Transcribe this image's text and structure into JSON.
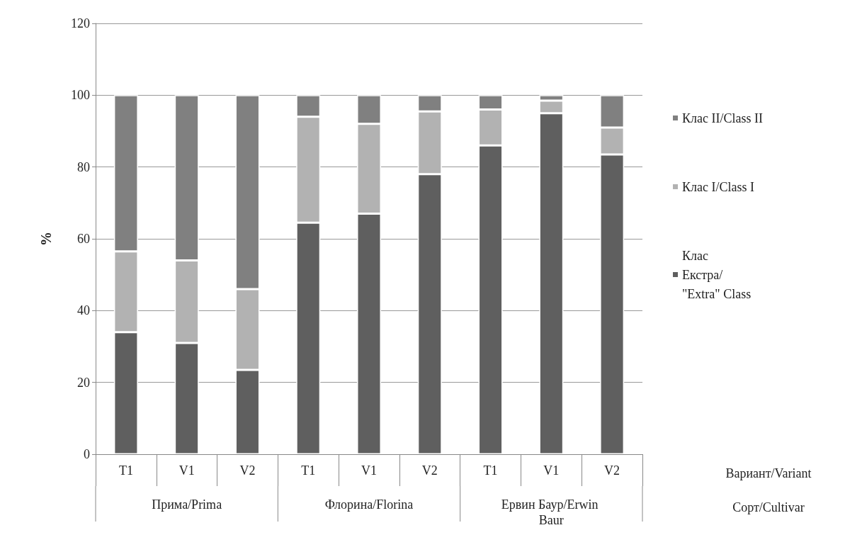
{
  "chart_data": {
    "type": "bar",
    "stacked": true,
    "ylabel": "%",
    "categories": [
      "T1",
      "V1",
      "V2",
      "T1",
      "V1",
      "V2",
      "T1",
      "V1",
      "V2"
    ],
    "series": [
      {
        "name": "Клас Екстра/\"Extra\" Class",
        "color": "#5f5f5f",
        "values": [
          34,
          31,
          23.5,
          64.5,
          67,
          78,
          86,
          95,
          83.5
        ]
      },
      {
        "name": "Клас I/Class I",
        "color": "#b2b2b2",
        "values": [
          22.5,
          23,
          22.5,
          29.5,
          25,
          17.5,
          10,
          3.5,
          7.5
        ]
      },
      {
        "name": "Клас II/Class II",
        "color": "#808080",
        "values": [
          43.5,
          46,
          54,
          6,
          8,
          4.5,
          4,
          1.5,
          9
        ]
      }
    ],
    "ylim": [
      0,
      120
    ],
    "yticks": [
      0,
      20,
      40,
      60,
      80,
      100,
      120
    ],
    "grid": "y",
    "legend": "right",
    "annotations": [
      "Прима/Prima",
      "Флорина/Florina",
      "Ервин Баур/Erwin Baur",
      "Вариант/Variant",
      "Сорт/Cultivar"
    ]
  }
}
